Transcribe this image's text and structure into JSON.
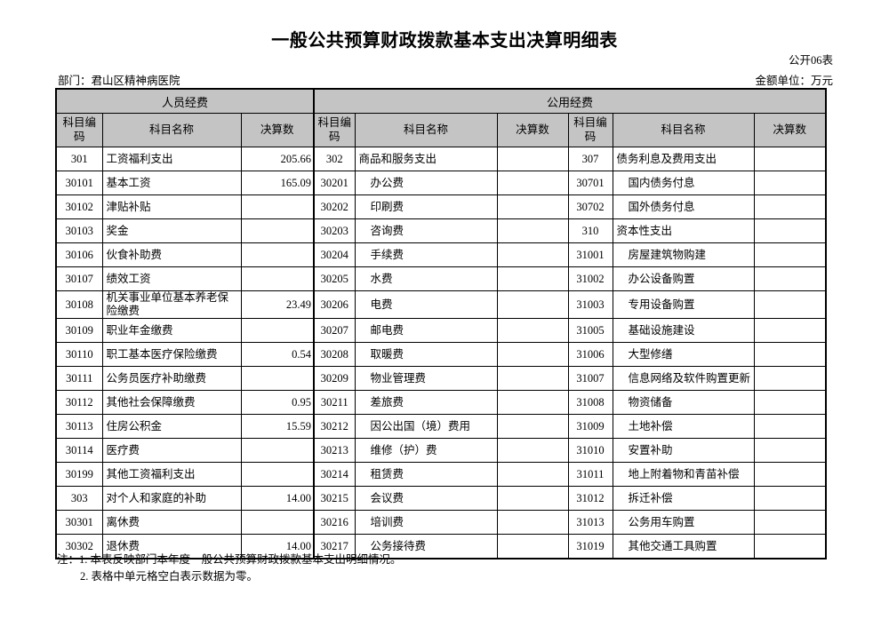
{
  "page": {
    "title": "一般公共预算财政拨款基本支出决算明细表",
    "form_code": "公开06表",
    "department_label": "部门：君山区精神病医院",
    "unit_label": "金额单位：万元"
  },
  "table": {
    "group_headers": [
      {
        "label": "人员经费",
        "colspan": 3
      },
      {
        "label": "公用经费",
        "colspan": 6
      }
    ],
    "column_headers": [
      "科目编码",
      "科目名称",
      "决算数",
      "科目编码",
      "科目名称",
      "决算数",
      "科目编码",
      "科目名称",
      "决算数"
    ],
    "sections": [
      {
        "name": "personnel-funds",
        "rows": [
          {
            "code": "301",
            "name": "工资福利支出",
            "value": "205.66",
            "indent": false
          },
          {
            "code": "30101",
            "name": "基本工资",
            "value": "165.09",
            "indent": false
          },
          {
            "code": "30102",
            "name": "津贴补贴",
            "value": "",
            "indent": false
          },
          {
            "code": "30103",
            "name": "奖金",
            "value": "",
            "indent": false
          },
          {
            "code": "30106",
            "name": "伙食补助费",
            "value": "",
            "indent": false
          },
          {
            "code": "30107",
            "name": "绩效工资",
            "value": "",
            "indent": false
          },
          {
            "code": "30108",
            "name": "机关事业单位基本养老保险缴费",
            "value": "23.49",
            "indent": false
          },
          {
            "code": "30109",
            "name": "职业年金缴费",
            "value": "",
            "indent": false
          },
          {
            "code": "30110",
            "name": "职工基本医疗保险缴费",
            "value": "0.54",
            "indent": false
          },
          {
            "code": "30111",
            "name": "公务员医疗补助缴费",
            "value": "",
            "indent": false
          },
          {
            "code": "30112",
            "name": "其他社会保障缴费",
            "value": "0.95",
            "indent": false
          },
          {
            "code": "30113",
            "name": "住房公积金",
            "value": "15.59",
            "indent": false
          },
          {
            "code": "30114",
            "name": "医疗费",
            "value": "",
            "indent": false
          },
          {
            "code": "30199",
            "name": "其他工资福利支出",
            "value": "",
            "indent": false
          },
          {
            "code": "303",
            "name": "对个人和家庭的补助",
            "value": "14.00",
            "indent": false
          },
          {
            "code": "30301",
            "name": "离休费",
            "value": "",
            "indent": false
          },
          {
            "code": "30302",
            "name": "退休费",
            "value": "14.00",
            "indent": false
          }
        ]
      },
      {
        "name": "public-funds-1",
        "rows": [
          {
            "code": "302",
            "name": "商品和服务支出",
            "value": "",
            "indent": false
          },
          {
            "code": "30201",
            "name": "办公费",
            "value": "",
            "indent": true
          },
          {
            "code": "30202",
            "name": "印刷费",
            "value": "",
            "indent": true
          },
          {
            "code": "30203",
            "name": "咨询费",
            "value": "",
            "indent": true
          },
          {
            "code": "30204",
            "name": "手续费",
            "value": "",
            "indent": true
          },
          {
            "code": "30205",
            "name": "水费",
            "value": "",
            "indent": true
          },
          {
            "code": "30206",
            "name": "电费",
            "value": "",
            "indent": true
          },
          {
            "code": "30207",
            "name": "邮电费",
            "value": "",
            "indent": true
          },
          {
            "code": "30208",
            "name": "取暖费",
            "value": "",
            "indent": true
          },
          {
            "code": "30209",
            "name": "物业管理费",
            "value": "",
            "indent": true
          },
          {
            "code": "30211",
            "name": "差旅费",
            "value": "",
            "indent": true
          },
          {
            "code": "30212",
            "name": "因公出国（境）费用",
            "value": "",
            "indent": true
          },
          {
            "code": "30213",
            "name": "维修（护）费",
            "value": "",
            "indent": true
          },
          {
            "code": "30214",
            "name": "租赁费",
            "value": "",
            "indent": true
          },
          {
            "code": "30215",
            "name": "会议费",
            "value": "",
            "indent": true
          },
          {
            "code": "30216",
            "name": "培训费",
            "value": "",
            "indent": true
          },
          {
            "code": "30217",
            "name": "公务接待费",
            "value": "",
            "indent": true
          }
        ]
      },
      {
        "name": "public-funds-2",
        "rows": [
          {
            "code": "307",
            "name": "债务利息及费用支出",
            "value": "",
            "indent": false
          },
          {
            "code": "30701",
            "name": "国内债务付息",
            "value": "",
            "indent": true
          },
          {
            "code": "30702",
            "name": "国外债务付息",
            "value": "",
            "indent": true
          },
          {
            "code": "310",
            "name": "资本性支出",
            "value": "",
            "indent": false
          },
          {
            "code": "31001",
            "name": "房屋建筑物购建",
            "value": "",
            "indent": true
          },
          {
            "code": "31002",
            "name": "办公设备购置",
            "value": "",
            "indent": true
          },
          {
            "code": "31003",
            "name": "专用设备购置",
            "value": "",
            "indent": true
          },
          {
            "code": "31005",
            "name": "基础设施建设",
            "value": "",
            "indent": true
          },
          {
            "code": "31006",
            "name": "大型修缮",
            "value": "",
            "indent": true
          },
          {
            "code": "31007",
            "name": "信息网络及软件购置更新",
            "value": "",
            "indent": true
          },
          {
            "code": "31008",
            "name": "物资储备",
            "value": "",
            "indent": true
          },
          {
            "code": "31009",
            "name": "土地补偿",
            "value": "",
            "indent": true
          },
          {
            "code": "31010",
            "name": "安置补助",
            "value": "",
            "indent": true
          },
          {
            "code": "31011",
            "name": "地上附着物和青苗补偿",
            "value": "",
            "indent": true
          },
          {
            "code": "31012",
            "name": "拆迁补偿",
            "value": "",
            "indent": true
          },
          {
            "code": "31013",
            "name": "公务用车购置",
            "value": "",
            "indent": true
          },
          {
            "code": "31019",
            "name": "其他交通工具购置",
            "value": "",
            "indent": true
          }
        ]
      }
    ]
  },
  "notes": {
    "line1": "注：1. 本表反映部门本年度一般公共预算财政拨款基本支出明细情况。",
    "line2": "2. 表格中单元格空白表示数据为零。"
  },
  "colors": {
    "header_bg": "#c4c4c4",
    "border": "#000000",
    "page_bg": "#ffffff"
  }
}
